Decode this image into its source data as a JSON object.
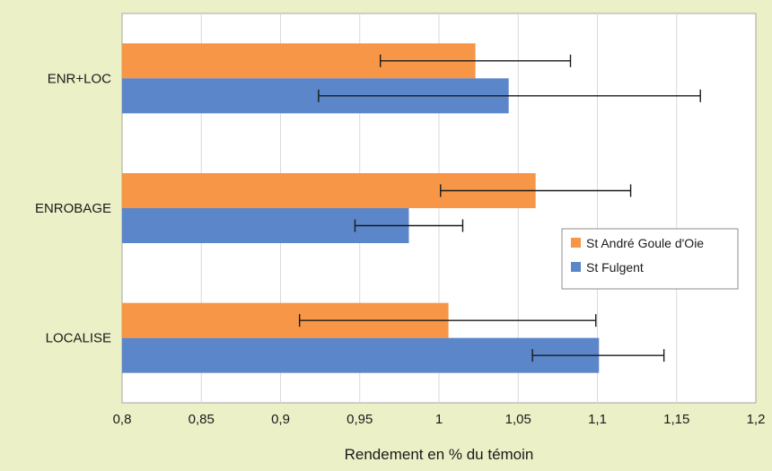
{
  "chart_data": {
    "type": "bar",
    "orientation": "horizontal",
    "title": "",
    "xlabel": "Rendement en % du témoin",
    "ylabel": "",
    "xlim": [
      0.8,
      1.2
    ],
    "x_ticks": [
      0.8,
      0.85,
      0.9,
      0.95,
      1,
      1.05,
      1.1,
      1.15,
      1.2
    ],
    "x_tick_labels": [
      "0,8",
      "0,85",
      "0,9",
      "0,95",
      "1",
      "1,05",
      "1,1",
      "1,15",
      "1,2"
    ],
    "categories": [
      "ENR+LOC",
      "ENROBAGE",
      "LOCALISE"
    ],
    "grid": "vertical",
    "legend_position": "right",
    "series": [
      {
        "name": "St André Goule d'Oie",
        "color": "#f79646",
        "values": [
          1.023,
          1.061,
          1.006
        ],
        "error_low": [
          0.963,
          1.001,
          0.912
        ],
        "error_high": [
          1.083,
          1.121,
          1.099
        ]
      },
      {
        "name": "St Fulgent",
        "color": "#5b86c9",
        "values": [
          1.044,
          0.981,
          1.101
        ],
        "error_low": [
          0.924,
          0.947,
          1.059
        ],
        "error_high": [
          1.165,
          1.015,
          1.142
        ]
      }
    ]
  }
}
